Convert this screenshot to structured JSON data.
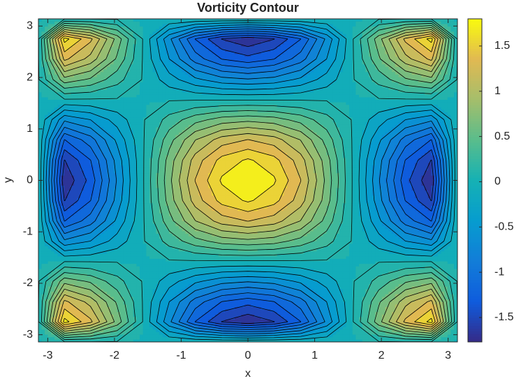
{
  "chart_data": {
    "type": "contour",
    "title": "Vorticity Contour",
    "x_label": "x",
    "y_label": "y",
    "x": [
      -3.14,
      -2.75,
      -2.36,
      -1.96,
      -1.57,
      -1.18,
      -0.79,
      -0.39,
      0,
      0.39,
      0.79,
      1.18,
      1.57,
      1.96,
      2.36,
      2.75,
      3.14
    ],
    "y": [
      -3.14,
      -2.75,
      -2.36,
      -1.96,
      -1.57,
      -1.18,
      -0.79,
      -0.39,
      0,
      0.39,
      0.79,
      1.18,
      1.57,
      1.96,
      2.36,
      2.75,
      3.14
    ],
    "z": [
      [
        0,
        0,
        0,
        0,
        0,
        0,
        0,
        0,
        0,
        0,
        0,
        0,
        0,
        0,
        0,
        0,
        0
      ],
      [
        0,
        1.69,
        1.31,
        0.66,
        0,
        -0.66,
        -1.24,
        -1.6,
        -1.74,
        -1.6,
        -1.24,
        -0.66,
        0,
        0.66,
        1.31,
        1.69,
        0
      ],
      [
        0,
        1.31,
        1.02,
        0.52,
        0,
        -0.52,
        -0.96,
        -1.24,
        -1.35,
        -1.24,
        -0.96,
        -0.52,
        0,
        0.52,
        1.02,
        1.31,
        0
      ],
      [
        0,
        0.66,
        0.52,
        0.26,
        0,
        -0.26,
        -0.48,
        -0.63,
        -0.68,
        -0.63,
        -0.48,
        -0.26,
        0,
        0.26,
        0.52,
        0.66,
        0
      ],
      [
        0,
        0,
        0,
        0,
        0,
        0,
        0,
        0,
        0,
        0,
        0,
        0,
        0,
        0,
        0,
        0,
        0
      ],
      [
        0,
        -0.66,
        -0.52,
        -0.26,
        0,
        0.26,
        0.48,
        0.63,
        0.68,
        0.63,
        0.48,
        0.26,
        0,
        -0.26,
        -0.52,
        -0.66,
        0
      ],
      [
        0,
        -1.24,
        -0.96,
        -0.48,
        0,
        0.48,
        0.9,
        1.17,
        1.27,
        1.17,
        0.9,
        0.48,
        0,
        -0.48,
        -0.96,
        -1.24,
        0
      ],
      [
        0,
        -1.6,
        -1.24,
        -0.63,
        0,
        0.63,
        1.17,
        1.51,
        1.65,
        1.51,
        1.17,
        0.63,
        0,
        -0.63,
        -1.24,
        -1.6,
        0
      ],
      [
        0,
        -1.74,
        -1.35,
        -0.68,
        0,
        0.68,
        1.27,
        1.65,
        1.8,
        1.65,
        1.27,
        0.68,
        0,
        -0.68,
        -1.35,
        -1.74,
        0
      ],
      [
        0,
        -1.6,
        -1.24,
        -0.63,
        0,
        0.63,
        1.17,
        1.51,
        1.65,
        1.51,
        1.17,
        0.63,
        0,
        -0.63,
        -1.24,
        -1.6,
        0
      ],
      [
        0,
        -1.24,
        -0.96,
        -0.48,
        0,
        0.48,
        0.9,
        1.17,
        1.27,
        1.17,
        0.9,
        0.48,
        0,
        -0.48,
        -0.96,
        -1.24,
        0
      ],
      [
        0,
        -0.66,
        -0.52,
        -0.26,
        0,
        0.26,
        0.48,
        0.63,
        0.68,
        0.63,
        0.48,
        0.26,
        0,
        -0.26,
        -0.52,
        -0.66,
        0
      ],
      [
        0,
        0,
        0,
        0,
        0,
        0,
        0,
        0,
        0,
        0,
        0,
        0,
        0,
        0,
        0,
        0,
        0
      ],
      [
        0,
        0.66,
        0.52,
        0.26,
        0,
        -0.26,
        -0.48,
        -0.63,
        -0.68,
        -0.63,
        -0.48,
        -0.26,
        0,
        0.26,
        0.52,
        0.66,
        0
      ],
      [
        0,
        1.31,
        1.02,
        0.52,
        0,
        -0.52,
        -0.96,
        -1.24,
        -1.35,
        -1.24,
        -0.96,
        -0.52,
        0,
        0.52,
        1.02,
        1.31,
        0
      ],
      [
        0,
        1.69,
        1.31,
        0.66,
        0,
        -0.66,
        -1.24,
        -1.6,
        -1.74,
        -1.6,
        -1.24,
        -0.66,
        0,
        0.66,
        1.31,
        1.69,
        0
      ],
      [
        0,
        0,
        0,
        0,
        0,
        0,
        0,
        0,
        0,
        0,
        0,
        0,
        0,
        0,
        0,
        0,
        0
      ]
    ],
    "xlim": [
      -3.14,
      3.14
    ],
    "ylim": [
      -3.14,
      3.14
    ],
    "xticks": [
      -3,
      -2,
      -1,
      0,
      1,
      2,
      3
    ],
    "yticks": [
      -3,
      -2,
      -1,
      0,
      1,
      2,
      3
    ],
    "colormap": "parula",
    "colorbar": {
      "clim": [
        -1.77,
        1.8
      ],
      "ticks": [
        -1.5,
        -1,
        -0.5,
        0,
        0.5,
        1,
        1.5
      ]
    }
  }
}
